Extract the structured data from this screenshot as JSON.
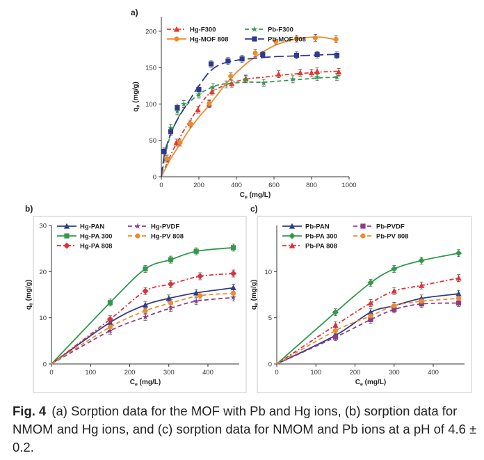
{
  "caption": {
    "label": "Fig. 4",
    "text": "(a) Sorption data for the MOF with Pb and Hg ions, (b) sorption data for NMOM and Hg ions, and (c) sorption data for NMOM and Pb ions at a pH of 4.6 ± 0.2."
  },
  "chart_data": [
    {
      "panel_label": "a)",
      "type": "line",
      "xlabel": "Ce (mg/L)",
      "ylabel": "qe (mg/g)",
      "xlim": [
        0,
        1000
      ],
      "ylim": [
        0,
        220
      ],
      "xticks": [
        0,
        200,
        400,
        600,
        800,
        1000
      ],
      "yticks": [
        0,
        50,
        100,
        150,
        200
      ],
      "legend_position": "top",
      "series": [
        {
          "name": "Hg-F300",
          "color": "#e8382e",
          "dash": "6,3,2,3",
          "marker": "triangle",
          "line": "smooth",
          "x": [
            0,
            50,
            90,
            130,
            170,
            210,
            260,
            350,
            450,
            550,
            650,
            750,
            850,
            950
          ],
          "y": [
            0,
            30,
            50,
            68,
            84,
            100,
            115,
            127,
            134,
            137,
            140,
            142,
            144,
            145
          ],
          "points": [
            [
              30,
              25
            ],
            [
              80,
              47
            ],
            [
              155,
              73
            ],
            [
              195,
              92
            ],
            [
              255,
              100
            ],
            [
              270,
              117
            ],
            [
              375,
              128
            ],
            [
              450,
              135
            ],
            [
              625,
              141
            ],
            [
              740,
              143
            ],
            [
              800,
              143
            ],
            [
              830,
              145
            ],
            [
              945,
              144
            ]
          ]
        },
        {
          "name": "Pb-F300",
          "color": "#2e9a4a",
          "dash": "6,4",
          "marker": "star",
          "line": "smooth",
          "x": [
            0,
            25,
            60,
            110,
            160,
            210,
            260,
            300,
            350,
            450,
            550,
            650,
            750,
            850,
            950
          ],
          "y": [
            0,
            35,
            65,
            90,
            105,
            115,
            122,
            126,
            128,
            130,
            130,
            132,
            134,
            136,
            137
          ],
          "points": [
            [
              15,
              35
            ],
            [
              50,
              67
            ],
            [
              85,
              90
            ],
            [
              120,
              100
            ],
            [
              200,
              113
            ],
            [
              275,
              123
            ],
            [
              345,
              127
            ],
            [
              450,
              134
            ],
            [
              545,
              129
            ],
            [
              700,
              134
            ],
            [
              830,
              137
            ],
            [
              935,
              137
            ]
          ]
        },
        {
          "name": "Hg-MOF 808",
          "color": "#f08a2c",
          "dash": "",
          "marker": "circle",
          "line": "smooth",
          "x": [
            0,
            50,
            100,
            150,
            200,
            260,
            320,
            380,
            450,
            520,
            600,
            680,
            760,
            840,
            900,
            930
          ],
          "y": [
            0,
            25,
            45,
            65,
            82,
            100,
            120,
            138,
            155,
            168,
            180,
            187,
            191,
            192,
            190,
            188
          ],
          "points": [
            [
              30,
              25
            ],
            [
              100,
              47
            ],
            [
              155,
              73
            ],
            [
              255,
              101
            ],
            [
              370,
              138
            ],
            [
              500,
              170
            ],
            [
              610,
              186
            ],
            [
              720,
              190
            ],
            [
              820,
              191
            ],
            [
              930,
              189
            ]
          ]
        },
        {
          "name": "Pb-MOF 808",
          "color": "#2e3a8f",
          "dash": "14,5",
          "marker": "square",
          "line": "smooth",
          "x": [
            0,
            20,
            60,
            100,
            150,
            200,
            260,
            320,
            400,
            500,
            600,
            700,
            800,
            900,
            950
          ],
          "y": [
            0,
            35,
            65,
            85,
            105,
            125,
            145,
            155,
            160,
            163,
            165,
            166,
            167,
            168,
            168
          ],
          "points": [
            [
              15,
              35
            ],
            [
              50,
              62
            ],
            [
              85,
              95
            ],
            [
              200,
              120
            ],
            [
              265,
              155
            ],
            [
              355,
              159
            ],
            [
              430,
              162
            ],
            [
              540,
              168
            ],
            [
              720,
              167
            ],
            [
              830,
              168
            ],
            [
              935,
              167
            ]
          ]
        }
      ]
    },
    {
      "panel_label": "b)",
      "type": "line",
      "xlabel": "Ce (mg/L)",
      "ylabel": "qe (mg/g)",
      "xlim": [
        0,
        480
      ],
      "ylim": [
        0,
        30
      ],
      "xticks": [
        0,
        100,
        200,
        300,
        400
      ],
      "yticks": [
        0,
        10,
        20,
        30
      ],
      "legend_position": "top-left",
      "series": [
        {
          "name": "Hg-PAN",
          "color": "#2e3a8f",
          "dash": "",
          "marker": "triangle",
          "line": "smooth",
          "x": [
            0,
            150,
            240,
            300,
            370,
            465
          ],
          "y": [
            0,
            9,
            12.8,
            14.2,
            15.4,
            16.5
          ]
        },
        {
          "name": "Hg-PA 300",
          "color": "#2e9a4a",
          "dash": "",
          "marker": "square",
          "line": "smooth",
          "x": [
            0,
            150,
            240,
            305,
            370,
            465
          ],
          "y": [
            0,
            13.3,
            20.6,
            22.6,
            24.4,
            25.2
          ]
        },
        {
          "name": "Hg-PA 808",
          "color": "#e0303a",
          "dash": "6,3,2,3",
          "marker": "diamond",
          "line": "smooth",
          "x": [
            0,
            150,
            240,
            305,
            380,
            465
          ],
          "y": [
            0,
            9.7,
            15.8,
            17.3,
            19,
            19.6
          ]
        },
        {
          "name": "Hg-PVDF",
          "color": "#8e3a8f",
          "dash": "6,4",
          "marker": "star",
          "line": "smooth",
          "x": [
            0,
            150,
            240,
            305,
            370,
            465
          ],
          "y": [
            0,
            7.2,
            10.2,
            12.1,
            13.6,
            14.4
          ]
        },
        {
          "name": "Hg-PV 808",
          "color": "#f08a2c",
          "dash": "6,4",
          "marker": "circle",
          "line": "smooth",
          "x": [
            0,
            150,
            240,
            305,
            380,
            465
          ],
          "y": [
            0,
            8,
            11.5,
            13.2,
            14.8,
            15.3
          ]
        }
      ]
    },
    {
      "panel_label": "c)",
      "type": "line",
      "xlabel": "Ce (mg/L)",
      "ylabel": "qe (mg/g)",
      "xlim": [
        0,
        480
      ],
      "ylim": [
        0,
        15
      ],
      "xticks": [
        0,
        100,
        200,
        300,
        400
      ],
      "yticks": [
        0,
        5,
        10
      ],
      "legend_position": "top-left",
      "series": [
        {
          "name": "Pb-PAN",
          "color": "#2e3a8f",
          "dash": "",
          "marker": "triangle",
          "line": "smooth",
          "x": [
            0,
            150,
            240,
            300,
            370,
            465
          ],
          "y": [
            0,
            3.1,
            5.6,
            6.3,
            7.1,
            7.6
          ]
        },
        {
          "name": "Pb-PA 300",
          "color": "#2e9a4a",
          "dash": "",
          "marker": "diamond",
          "line": "smooth",
          "x": [
            0,
            150,
            240,
            300,
            370,
            465
          ],
          "y": [
            0,
            5.6,
            8.8,
            10.3,
            11.2,
            12
          ]
        },
        {
          "name": "Pb-PA 808",
          "color": "#e0303a",
          "dash": "6,3,2,3",
          "marker": "triangle",
          "line": "smooth",
          "x": [
            0,
            150,
            240,
            300,
            370,
            465
          ],
          "y": [
            0,
            4.2,
            6.6,
            7.9,
            8.5,
            9.3
          ]
        },
        {
          "name": "Pb-PVDF",
          "color": "#8e3a8f",
          "dash": "6,4",
          "marker": "square",
          "line": "smooth",
          "x": [
            0,
            150,
            240,
            300,
            370,
            465
          ],
          "y": [
            0,
            2.9,
            4.8,
            5.9,
            6.5,
            6.6
          ]
        },
        {
          "name": "Pb-PV 808",
          "color": "#f08a2c",
          "dash": "6,4",
          "marker": "circle",
          "line": "smooth",
          "x": [
            0,
            150,
            240,
            300,
            370,
            465
          ],
          "y": [
            0,
            3.6,
            5.2,
            6.3,
            6.8,
            7.1
          ]
        }
      ]
    }
  ]
}
